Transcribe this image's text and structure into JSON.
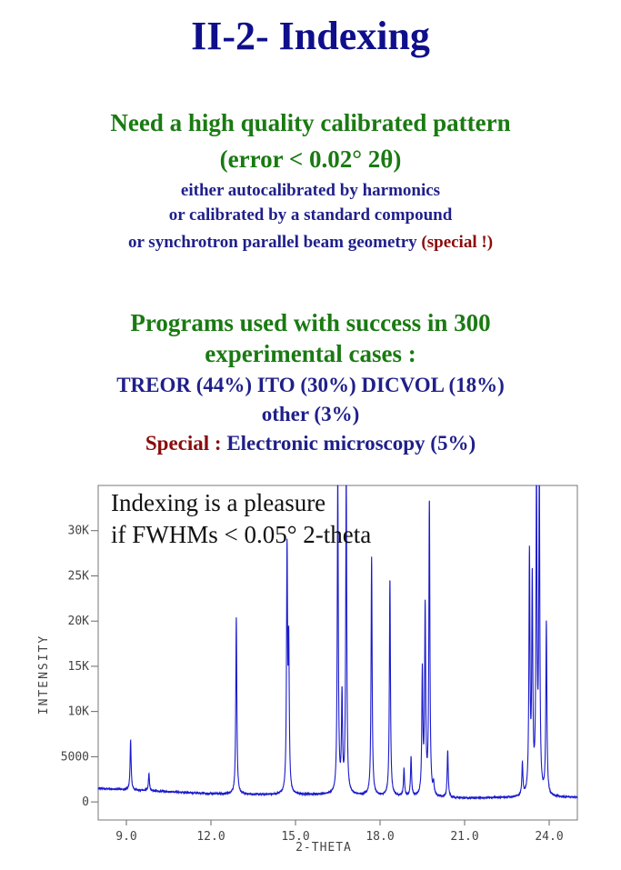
{
  "page": {
    "title": "II-2- Indexing",
    "requirement": {
      "line1": "Need a high quality calibrated pattern",
      "line2": "(error < 0.02° 2θ)",
      "sub1": "either autocalibrated by harmonics",
      "sub2": "or calibrated by a standard compound",
      "sub3_main": "or synchrotron parallel beam geometry ",
      "sub3_special": "(special !)"
    },
    "programs": {
      "line1": "Programs used with success in 300",
      "line2": "experimental cases :",
      "line3": "TREOR (44%)  ITO (30%)  DICVOL (18%)",
      "line4": "other (3%)",
      "line5_special": "Special :",
      "line5_rest": " Electronic microscopy (5%)"
    }
  },
  "colors": {
    "title": "#0f0f8c",
    "green": "#1a7a12",
    "navy": "#1f1f8a",
    "special": "#8a0b0b",
    "trace": "#1a1acc"
  },
  "chart_data": {
    "type": "line",
    "title": "",
    "xlabel": "2-THETA",
    "ylabel": "INTENSITY",
    "annotation_line1": "Indexing is a pleasure",
    "annotation_line2": "if FWHMs < 0.05° 2-theta",
    "xlim": [
      8.0,
      25.0
    ],
    "ylim": [
      -2000,
      35000
    ],
    "x_ticks": [
      {
        "value": 9.0,
        "label": "9.0"
      },
      {
        "value": 12.0,
        "label": "12.0"
      },
      {
        "value": 15.0,
        "label": "15.0"
      },
      {
        "value": 18.0,
        "label": "18.0"
      },
      {
        "value": 21.0,
        "label": "21.0"
      },
      {
        "value": 24.0,
        "label": "24.0"
      }
    ],
    "y_ticks": [
      {
        "value": 0,
        "label": "0"
      },
      {
        "value": 5000,
        "label": "5000"
      },
      {
        "value": 10000,
        "label": "10K"
      },
      {
        "value": 15000,
        "label": "15K"
      },
      {
        "value": 20000,
        "label": "20K"
      },
      {
        "value": 25000,
        "label": "25K"
      },
      {
        "value": 30000,
        "label": "30K"
      }
    ],
    "background": [
      [
        8.0,
        1500
      ],
      [
        10.0,
        1200
      ],
      [
        12.0,
        900
      ],
      [
        14.0,
        800
      ],
      [
        16.5,
        800
      ],
      [
        18.5,
        600
      ],
      [
        21.0,
        400
      ],
      [
        23.0,
        500
      ],
      [
        25.0,
        500
      ]
    ],
    "peaks": [
      {
        "x": 9.15,
        "y": 5500
      },
      {
        "x": 9.8,
        "y": 1900
      },
      {
        "x": 12.9,
        "y": 19500
      },
      {
        "x": 14.7,
        "y": 26500
      },
      {
        "x": 14.76,
        "y": 15500
      },
      {
        "x": 16.5,
        "y": 35000
      },
      {
        "x": 16.65,
        "y": 10500
      },
      {
        "x": 16.8,
        "y": 35000
      },
      {
        "x": 17.7,
        "y": 26300
      },
      {
        "x": 18.35,
        "y": 24000
      },
      {
        "x": 18.85,
        "y": 3000
      },
      {
        "x": 19.1,
        "y": 4300
      },
      {
        "x": 19.5,
        "y": 13500
      },
      {
        "x": 19.6,
        "y": 20500
      },
      {
        "x": 19.75,
        "y": 32500
      },
      {
        "x": 19.9,
        "y": 1200
      },
      {
        "x": 20.4,
        "y": 5200
      },
      {
        "x": 23.05,
        "y": 3500
      },
      {
        "x": 23.3,
        "y": 26300
      },
      {
        "x": 23.4,
        "y": 23000
      },
      {
        "x": 23.55,
        "y": 35000
      },
      {
        "x": 23.65,
        "y": 35000
      },
      {
        "x": 23.9,
        "y": 19000
      }
    ]
  }
}
